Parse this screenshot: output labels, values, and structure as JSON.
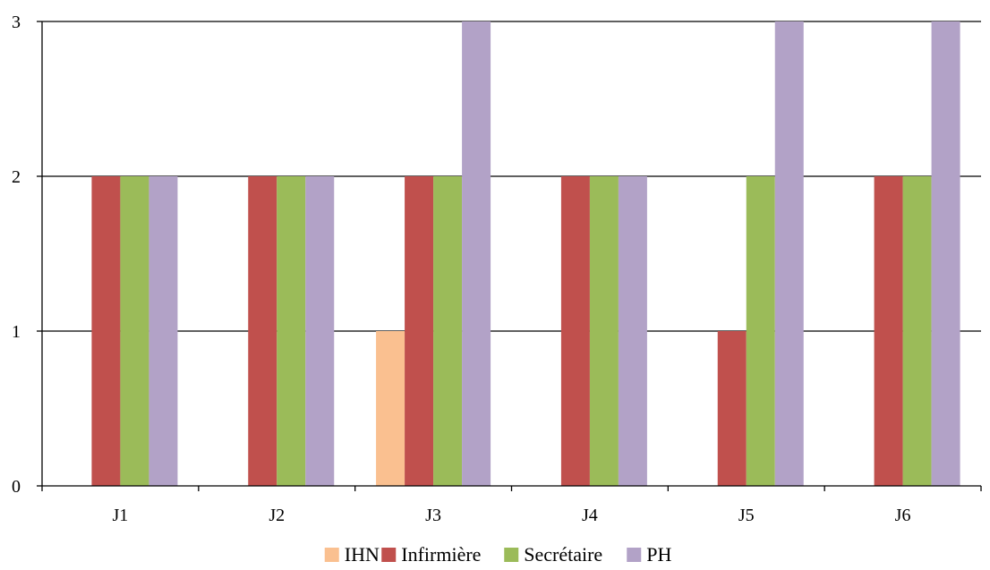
{
  "chart_data": {
    "type": "bar",
    "categories": [
      "J1",
      "J2",
      "J3",
      "J4",
      "J5",
      "J6"
    ],
    "series": [
      {
        "name": "IHN",
        "color": "#FAC090",
        "values": [
          0,
          0,
          1,
          0,
          0,
          0
        ]
      },
      {
        "name": "Infirmière",
        "color": "#C0504D",
        "values": [
          2,
          2,
          2,
          2,
          1,
          2
        ]
      },
      {
        "name": "Secrétaire",
        "color": "#9BBB59",
        "values": [
          2,
          2,
          2,
          2,
          2,
          2
        ]
      },
      {
        "name": "PH",
        "color": "#B2A2C7",
        "values": [
          2,
          2,
          3,
          2,
          3,
          3
        ]
      }
    ],
    "yticks": [
      "0",
      "1",
      "2",
      "3"
    ],
    "ylim": [
      0,
      3
    ],
    "grid": true,
    "legend_position": "bottom"
  }
}
